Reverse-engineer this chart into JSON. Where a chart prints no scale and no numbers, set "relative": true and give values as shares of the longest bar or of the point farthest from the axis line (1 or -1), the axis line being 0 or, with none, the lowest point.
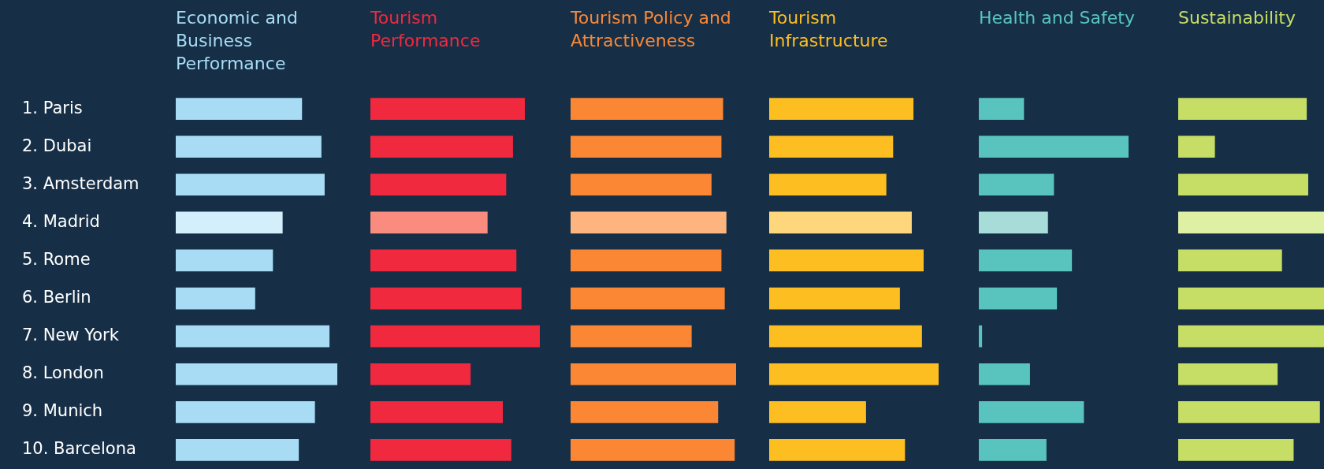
{
  "chart_data": [
    {
      "type": "bar",
      "orientation": "horizontal",
      "relative": true,
      "tick_labels": "y",
      "title": "Economic and Business Performance",
      "categories": [
        "1. Paris",
        "2. Dubai",
        "3. Amsterdam",
        "4. Madrid",
        "5. Rome",
        "6. Berlin",
        "7. New York",
        "8. London",
        "9. Munich",
        "10. Barcelona"
      ],
      "color": "#a8dcf5",
      "colors": [
        "#a8dcf5",
        "#a8dcf5",
        "#a8dcf5",
        "#d2effb",
        "#a8dcf5",
        "#a8dcf5",
        "#a8dcf5",
        "#a8dcf5",
        "#a8dcf5",
        "#a8dcf5"
      ],
      "values": [
        0.78,
        0.9,
        0.92,
        0.66,
        0.6,
        0.49,
        0.95,
        1,
        0.86,
        0.76
      ]
    },
    {
      "type": "bar",
      "orientation": "horizontal",
      "relative": true,
      "tick_labels": false,
      "title": "Tourism Performance",
      "categories": [
        null,
        null,
        null,
        null,
        null,
        null,
        null,
        null,
        null,
        null
      ],
      "color": "#f0293f",
      "colors": [
        "#f0293f",
        "#f0293f",
        "#f0293f",
        "#f98b7f",
        "#f0293f",
        "#f0293f",
        "#f0293f",
        "#f0293f",
        "#f0293f",
        "#f0293f"
      ],
      "values": [
        0.91,
        0.84,
        0.8,
        0.69,
        0.86,
        0.89,
        1,
        0.59,
        0.78,
        0.83
      ]
    },
    {
      "type": "bar",
      "orientation": "horizontal",
      "relative": true,
      "tick_labels": false,
      "title": "Tourism Policy and Attractiveness",
      "categories": [
        null,
        null,
        null,
        null,
        null,
        null,
        null,
        null,
        null,
        null
      ],
      "color": "#fb8735",
      "colors": [
        "#fb8735",
        "#fb8735",
        "#fb8735",
        "#fdb47f",
        "#fb8735",
        "#fb8735",
        "#fb8735",
        "#fb8735",
        "#fb8735",
        "#fb8735"
      ],
      "values": [
        0.92,
        0.91,
        0.85,
        0.94,
        0.91,
        0.93,
        0.73,
        1,
        0.89,
        0.99
      ]
    },
    {
      "type": "bar",
      "orientation": "horizontal",
      "relative": true,
      "tick_labels": false,
      "title": "Tourism Infrastructure",
      "categories": [
        null,
        null,
        null,
        null,
        null,
        null,
        null,
        null,
        null,
        null
      ],
      "color": "#fdbe21",
      "colors": [
        "#fdbe21",
        "#fdbe21",
        "#fdbe21",
        "#fed77d",
        "#fdbe21",
        "#fdbe21",
        "#fdbe21",
        "#fdbe21",
        "#fdbe21",
        "#fdbe21"
      ],
      "values": [
        0.85,
        0.73,
        0.69,
        0.84,
        0.91,
        0.77,
        0.9,
        1,
        0.57,
        0.8
      ]
    },
    {
      "type": "bar",
      "orientation": "horizontal",
      "relative": true,
      "tick_labels": false,
      "title": "Health and Safety",
      "categories": [
        null,
        null,
        null,
        null,
        null,
        null,
        null,
        null,
        null,
        null
      ],
      "color": "#58c4bd",
      "colors": [
        "#58c4bd",
        "#58c4bd",
        "#58c4bd",
        "#a7dcd8",
        "#58c4bd",
        "#58c4bd",
        "#58c4bd",
        "#58c4bd",
        "#58c4bd",
        "#58c4bd"
      ],
      "values": [
        0.3,
        1,
        0.5,
        0.46,
        0.62,
        0.52,
        0.02,
        0.34,
        0.7,
        0.45
      ]
    },
    {
      "type": "bar",
      "orientation": "horizontal",
      "relative": true,
      "tick_labels": false,
      "title": "Sustainability",
      "categories": [
        null,
        null,
        null,
        null,
        null,
        null,
        null,
        null,
        null,
        null
      ],
      "color": "#c6dd66",
      "colors": [
        "#c6dd66",
        "#c6dd66",
        "#c6dd66",
        "#def0a4",
        "#c6dd66",
        "#c6dd66",
        "#c6dd66",
        "#c6dd66",
        "#c6dd66",
        "#c6dd66"
      ],
      "values": [
        0.88,
        0.25,
        0.89,
        1,
        0.71,
        1,
        1,
        0.68,
        0.97,
        0.79
      ]
    }
  ]
}
